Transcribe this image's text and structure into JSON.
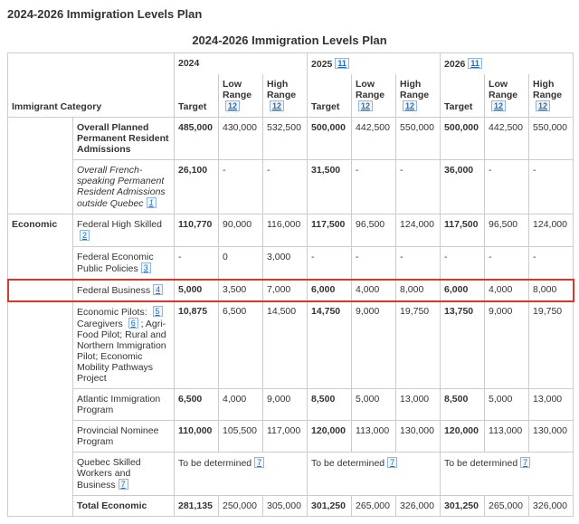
{
  "page_title": "2024-2026 Immigration Levels Plan",
  "table_caption": "2024-2026 Immigration Levels Plan",
  "header": {
    "corner": "Immigrant Category",
    "years": [
      "2024",
      "2025",
      "2026"
    ],
    "year_fn": [
      "",
      "11",
      "11"
    ],
    "subs": [
      "Target",
      "Low Range",
      "High Range"
    ],
    "sub_fn": [
      "",
      "12",
      "12"
    ]
  },
  "categories": [
    {
      "name": ""
    },
    {
      "name": "Economic"
    }
  ],
  "rows": [
    {
      "label": "Overall Planned Permanent Resident Admissions",
      "bold": true,
      "fn": "",
      "c": [
        "485,000",
        "430,000",
        "532,500",
        "500,000",
        "442,500",
        "550,000",
        "500,000",
        "442,500",
        "550,000"
      ],
      "boldTargets": true
    },
    {
      "label": "Overall French-speaking Permanent Resident Admissions outside Quebec",
      "italic": true,
      "fn": "1",
      "c": [
        "26,100",
        "-",
        "-",
        "31,500",
        "-",
        "-",
        "36,000",
        "-",
        "-"
      ],
      "boldTargets": true
    },
    {
      "label": "Federal High Skilled",
      "fn": "2",
      "c": [
        "110,770",
        "90,000",
        "116,000",
        "117,500",
        "96,500",
        "124,000",
        "117,500",
        "96,500",
        "124,000"
      ],
      "boldTargets": true
    },
    {
      "label": "Federal Economic Public Policies",
      "fn": "3",
      "c": [
        "-",
        "0",
        "3,000",
        "-",
        "-",
        "-",
        "-",
        "-",
        "-"
      ]
    },
    {
      "label": "Federal Business",
      "fn": "4",
      "highlight": true,
      "c": [
        "5,000",
        "3,500",
        "7,000",
        "6,000",
        "4,000",
        "8,000",
        "6,000",
        "4,000",
        "8,000"
      ],
      "boldTargets": true
    },
    {
      "label_html": "Economic Pilots: {5} Caregivers {6} ; Agri-Food Pilot; Rural and Northern Immigration Pilot; Economic Mobility Pathways Project",
      "c": [
        "10,875",
        "6,500",
        "14,500",
        "14,750",
        "9,000",
        "19,750",
        "13,750",
        "9,000",
        "19,750"
      ],
      "boldTargets": true
    },
    {
      "label": "Atlantic Immigration Program",
      "c": [
        "6,500",
        "4,000",
        "9,000",
        "8,500",
        "5,000",
        "13,000",
        "8,500",
        "5,000",
        "13,000"
      ],
      "boldTargets": true
    },
    {
      "label": "Provincial Nominee Program",
      "c": [
        "110,000",
        "105,500",
        "117,000",
        "120,000",
        "113,000",
        "130,000",
        "120,000",
        "113,000",
        "130,000"
      ],
      "boldTargets": true
    },
    {
      "label": "Quebec Skilled Workers and Business",
      "fn": "7",
      "tbd": "To be determined",
      "tbd_fn": "7"
    },
    {
      "label": "Total Economic",
      "bold": true,
      "c": [
        "281,135",
        "250,000",
        "305,000",
        "301,250",
        "265,000",
        "326,000",
        "301,250",
        "265,000",
        "326,000"
      ],
      "boldTargets": true
    }
  ],
  "cat_spans": [
    2,
    8
  ]
}
